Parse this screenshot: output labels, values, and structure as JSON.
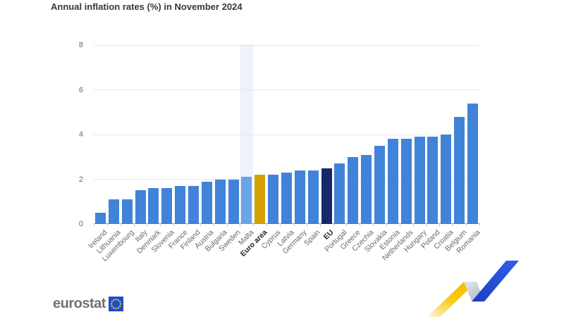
{
  "chart_data": {
    "type": "bar",
    "title": "Annual inflation rates (%) in November 2024",
    "categories": [
      "Ireland",
      "Lithuania",
      "Luxembourg",
      "Italy",
      "Denmark",
      "Slovenia",
      "France",
      "Finland",
      "Austria",
      "Bulgaria",
      "Sweden",
      "Malta",
      "Euro area",
      "Cyprus",
      "Latvia",
      "Germany",
      "Spain",
      "EU",
      "Portugal",
      "Greece",
      "Czechia",
      "Slovakia",
      "Estonia",
      "Netherlands",
      "Hungary",
      "Poland",
      "Croatia",
      "Belgium",
      "Romania"
    ],
    "values": [
      0.5,
      1.1,
      1.1,
      1.5,
      1.6,
      1.6,
      1.7,
      1.7,
      1.9,
      2.0,
      2.0,
      2.1,
      2.2,
      2.2,
      2.3,
      2.4,
      2.4,
      2.5,
      2.7,
      3.0,
      3.1,
      3.5,
      3.8,
      3.8,
      3.9,
      3.9,
      4.0,
      4.8,
      5.4
    ],
    "xlabel": "",
    "ylabel": "",
    "ylim": [
      0,
      8
    ],
    "yticks": [
      0,
      2,
      4,
      6,
      8
    ],
    "grid": true,
    "legend": "none",
    "bold_categories": [
      "Euro area",
      "EU"
    ],
    "highlighted_category": "Malta",
    "colors": {
      "default_bar": "#4183d8",
      "euro_area_bar": "#d0a202",
      "eu_bar": "#14296d",
      "highlighted_bar": "#6ba3e8",
      "highlight_band": "#eff2f9",
      "gridline": "#e7e8ec",
      "axis_line": "#9aa0a8"
    },
    "category_colors": {
      "Euro area": "euro_area_bar",
      "EU": "eu_bar",
      "Malta": "highlighted_bar"
    }
  },
  "branding": {
    "logo_text": "eurostat"
  }
}
